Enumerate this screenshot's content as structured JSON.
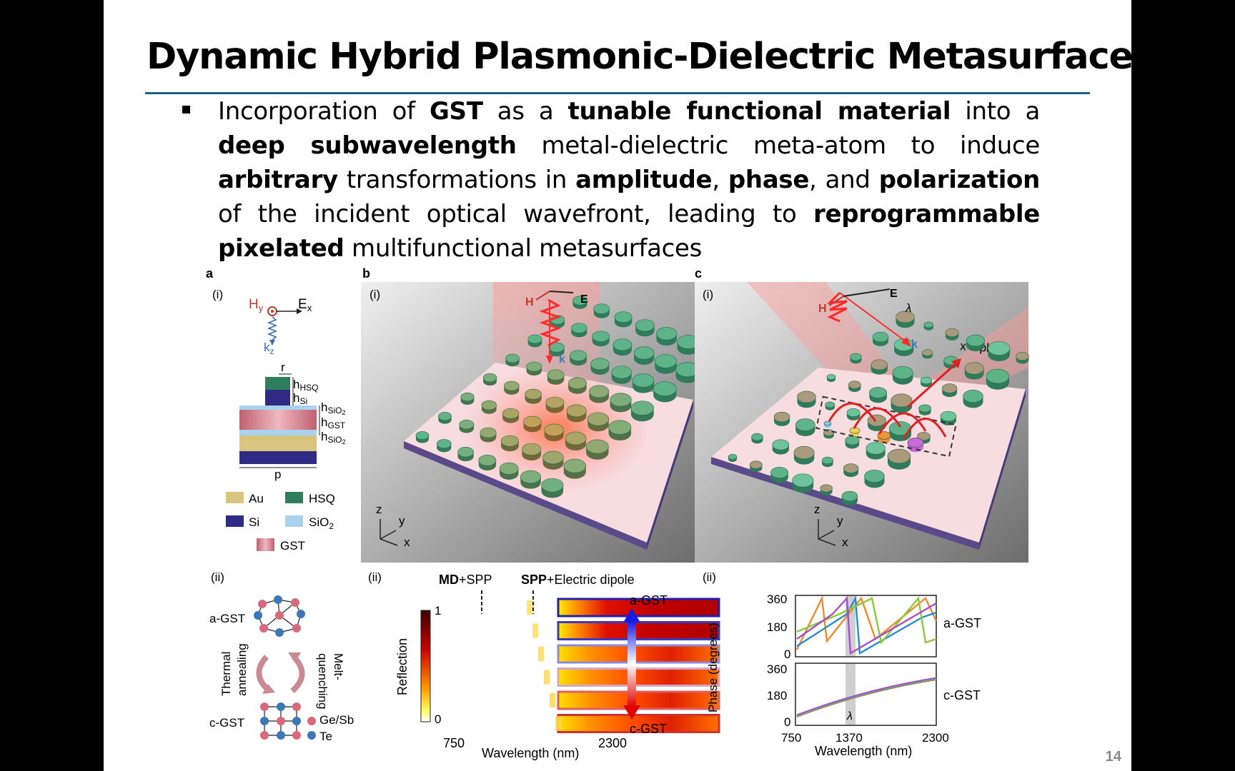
{
  "slide": {
    "title": "Dynamic Hybrid Plasmonic-Dielectric Metasurfaces",
    "page_number": "14",
    "bullet": {
      "t1": "Incorporation of ",
      "b1": "GST",
      "t2": " as a ",
      "b2": "tunable functional material",
      "t3": " into a ",
      "b3": "deep subwavelength",
      "t4": " metal-dielectric meta-atom to induce ",
      "b4": "arbitrary",
      "t5": " transformations in ",
      "b5": "amplitude",
      "t6": ", ",
      "b6": "phase",
      "t7": ", and ",
      "b7": "polarization",
      "t8": " of the incident optical wavefront, leading to ",
      "b8": "reprogrammable pixelated",
      "t9": " multifunctional metasurfaces"
    }
  },
  "figure": {
    "panel_letters": {
      "a": "a",
      "b": "b",
      "c": "c"
    },
    "sub_i": "(i)",
    "sub_ii": "(ii)",
    "panel_a": {
      "field_h": "H",
      "field_h_sub": "y",
      "field_e": "E",
      "field_e_sub": "x",
      "field_k": "k",
      "field_k_sub": "z",
      "dim_r": "r",
      "dim_p": "p",
      "h": "h",
      "sub_hsq": "HSQ",
      "sub_si": "Si",
      "sub_sio2": "SiO",
      "sub_gst": "GST",
      "two": "2",
      "legend": {
        "au": "Au",
        "hsq": "HSQ",
        "si": "Si",
        "sio2": "SiO",
        "sio2_sub": "2",
        "gst": "GST"
      },
      "colors": {
        "au": "#d9c57f",
        "hsq": "#2e7d5b",
        "si": "#2e2a86",
        "sio2": "#a9d2ee",
        "gst": "#c9737f"
      },
      "a_gst": "a-GST",
      "c_gst": "c-GST",
      "thermal": "Thermal",
      "annealing": "annealing",
      "melt": "Melt-",
      "quenching": "quenching",
      "atom_gesb": "Ge/Sb",
      "atom_te": "Te"
    },
    "panel_b": {
      "vec_h": "H",
      "vec_e": "E",
      "vec_k": "k",
      "axis_z": "z",
      "axis_y": "y",
      "axis_x": "x"
    },
    "panel_b_ii": {
      "md": "MD",
      "md_rest": "+SPP",
      "spp": "SPP",
      "spp_rest": "+Electric dipole",
      "reflection": "Reflection",
      "cb_max": "1",
      "cb_min": "0",
      "x_min": "750",
      "x_max": "2300",
      "x_label": "Wavelength (nm)",
      "a_gst": "a-GST",
      "c_gst": "c-GST"
    },
    "panel_c": {
      "vec_h": "H",
      "vec_e": "E",
      "vec_k": "k",
      "lambda": "λ",
      "plane": "x-z plane",
      "axis_z": "z",
      "axis_y": "y",
      "axis_x": "x"
    },
    "panel_c_ii": {
      "y_label": "Phase (degrees)",
      "y_ticks": [
        "360",
        "180",
        "0"
      ],
      "x_ticks": [
        "750",
        "1370",
        "2300"
      ],
      "x_label": "Wavelength (nm)",
      "top_label": "a-GST",
      "bottom_label": "c-GST",
      "lambda": "λ"
    }
  }
}
